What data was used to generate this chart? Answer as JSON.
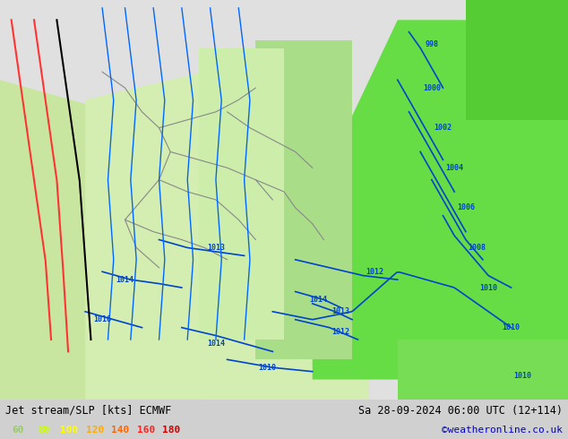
{
  "title_left": "Jet stream/SLP [kts] ECMWF",
  "title_right": "Sa 28-09-2024 06:00 UTC (12+114)",
  "credit": "©weatheronline.co.uk",
  "legend_values": [
    "60",
    "80",
    "100",
    "120",
    "140",
    "160",
    "180"
  ],
  "legend_colors": [
    "#00cc00",
    "#99ff00",
    "#ffff00",
    "#ffaa00",
    "#ff6600",
    "#ff0000",
    "#cc0000"
  ],
  "bg_color": "#e8e8e8",
  "bottom_bar_color": "#000000",
  "title_color": "#000000",
  "credit_color": "#0000cc",
  "figsize": [
    6.34,
    4.9
  ],
  "dpi": 100
}
